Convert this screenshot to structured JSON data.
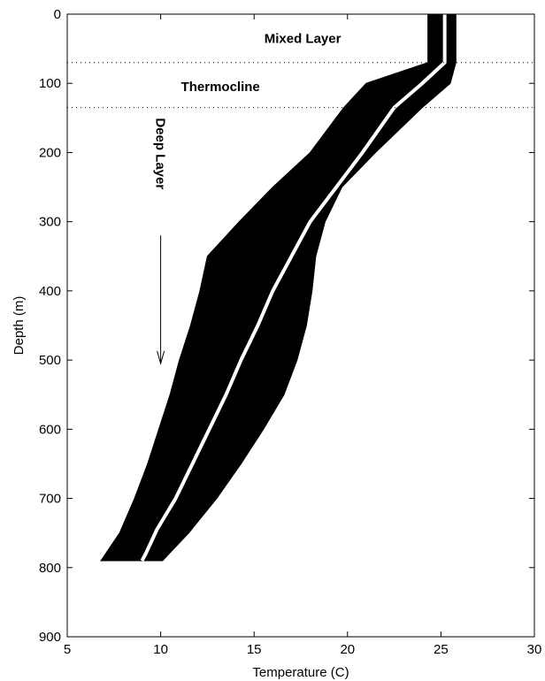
{
  "chart_data": {
    "type": "line",
    "xlabel": "Temperature (C)",
    "ylabel": "Depth (m)",
    "xlim": [
      5,
      30
    ],
    "ylim": [
      0,
      900
    ],
    "y_inverted": true,
    "grid": false,
    "xticks": [
      5,
      10,
      15,
      20,
      25,
      30
    ],
    "yticks": [
      0,
      100,
      200,
      300,
      400,
      500,
      600,
      700,
      800,
      900
    ],
    "layer_boundaries": [
      {
        "depth": 70,
        "style": "dotted"
      },
      {
        "depth": 135,
        "style": "dotted"
      }
    ],
    "annotations": [
      {
        "text": "Mixed Layer",
        "x": 17.6,
        "y": 35
      },
      {
        "text": "Thermocline",
        "x": 13.2,
        "y": 105
      },
      {
        "text": "Deep Layer",
        "x": 10,
        "y": 150,
        "rotation": 90
      }
    ],
    "arrow": {
      "x": 10,
      "y_start": 320,
      "y_end": 505
    },
    "envelope": {
      "color": "#000000",
      "depth": [
        0,
        70,
        100,
        135,
        200,
        250,
        300,
        350,
        400,
        450,
        500,
        550,
        600,
        650,
        700,
        750,
        790
      ],
      "left": [
        24.3,
        24.3,
        21.0,
        19.8,
        18.0,
        16.0,
        14.2,
        12.5,
        12.1,
        11.6,
        11.0,
        10.5,
        9.9,
        9.3,
        8.6,
        7.8,
        6.8
      ],
      "right": [
        25.8,
        25.8,
        25.5,
        24.0,
        21.5,
        19.7,
        18.8,
        18.3,
        18.1,
        17.8,
        17.3,
        16.6,
        15.5,
        14.3,
        13.0,
        11.5,
        10.1
      ]
    },
    "series": [
      {
        "color": "#ffffff",
        "x": [
          25.2,
          25.2,
          24.0,
          22.5,
          20.8,
          19.4,
          18.0,
          17.0,
          16.0,
          15.2,
          14.3,
          13.5,
          12.6,
          11.7,
          10.8,
          9.8,
          9.2,
          9.0
        ],
        "y": [
          0,
          70,
          100,
          135,
          200,
          250,
          300,
          350,
          400,
          450,
          500,
          550,
          600,
          650,
          700,
          745,
          780,
          790
        ]
      }
    ]
  }
}
